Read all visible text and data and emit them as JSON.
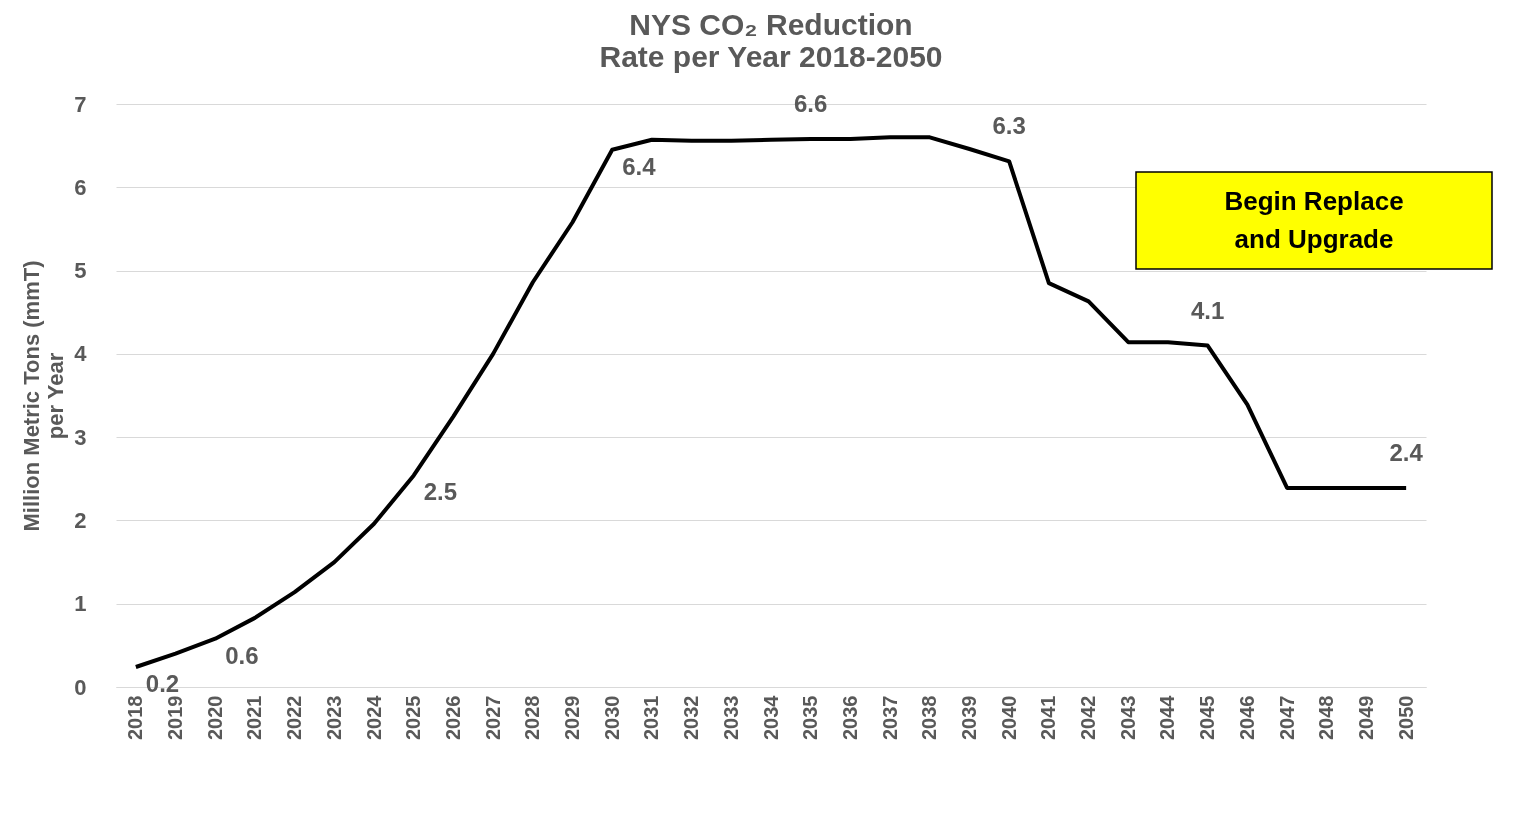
{
  "chart_data": {
    "type": "line",
    "title": "NYS CO₂ Reduction",
    "subtitle": "Rate per Year 2018-2050",
    "ylabel": "Million Metric Tons (mmT) per Year",
    "categories": [
      "2018",
      "2019",
      "2020",
      "2021",
      "2022",
      "2023",
      "2024",
      "2025",
      "2026",
      "2027",
      "2028",
      "2029",
      "2030",
      "2031",
      "2032",
      "2033",
      "2034",
      "2035",
      "2036",
      "2037",
      "2038",
      "2039",
      "2040",
      "2041",
      "2042",
      "2043",
      "2044",
      "2045",
      "2046",
      "2047",
      "2048",
      "2049",
      "2050"
    ],
    "series": [
      {
        "color": "#000000",
        "values": [
          0.24,
          0.4,
          0.58,
          0.83,
          1.14,
          1.5,
          1.96,
          2.54,
          3.25,
          4.0,
          4.86,
          5.58,
          6.45,
          6.57,
          6.56,
          6.56,
          6.57,
          6.58,
          6.58,
          6.6,
          6.6,
          6.46,
          6.31,
          4.85,
          4.63,
          4.14,
          4.14,
          4.1,
          3.39,
          2.39,
          2.39,
          2.39,
          2.39
        ],
        "value_labels": [
          "0.2",
          null,
          "0.6",
          null,
          null,
          null,
          null,
          "2.5",
          null,
          null,
          null,
          null,
          "6.4",
          null,
          null,
          null,
          null,
          "6.6",
          null,
          null,
          null,
          null,
          "6.3",
          null,
          null,
          null,
          null,
          "4.1",
          null,
          null,
          null,
          null,
          "2.4"
        ]
      }
    ],
    "ylim": [
      0,
      7
    ],
    "yticks": [
      0,
      1,
      2,
      3,
      4,
      5,
      6,
      7
    ],
    "grid": "y",
    "legend": false,
    "marker": "none",
    "line_style": "solid",
    "annotations": [
      "Begin Replace and Upgrade"
    ]
  }
}
